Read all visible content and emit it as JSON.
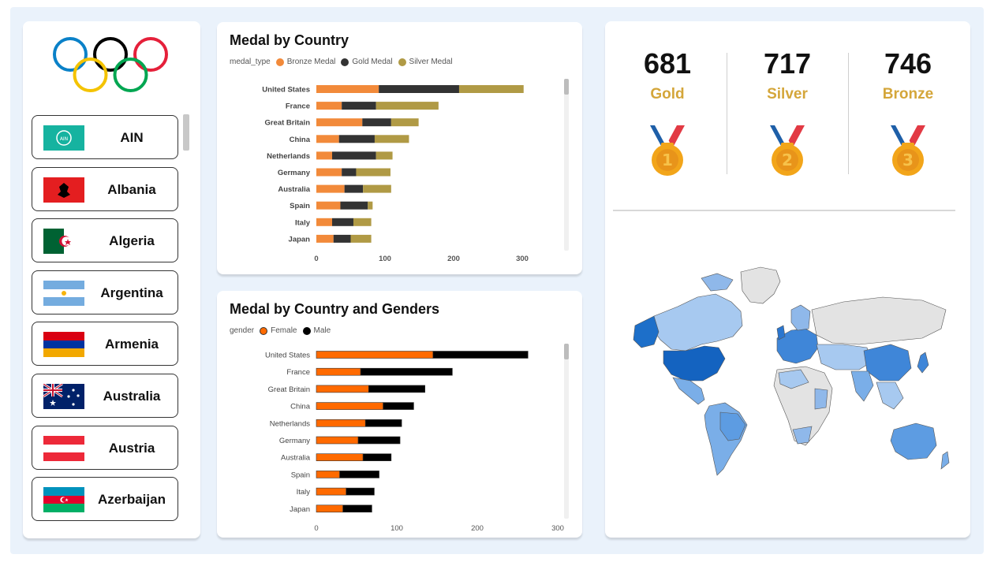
{
  "countries": [
    {
      "name": "AIN",
      "flag": "ain-flag"
    },
    {
      "name": "Albania",
      "flag": "albania-flag"
    },
    {
      "name": "Algeria",
      "flag": "algeria-flag"
    },
    {
      "name": "Argentina",
      "flag": "argentina-flag"
    },
    {
      "name": "Armenia",
      "flag": "armenia-flag"
    },
    {
      "name": "Australia",
      "flag": "australia-flag"
    },
    {
      "name": "Austria",
      "flag": "austria-flag"
    },
    {
      "name": "Azerbaijan",
      "flag": "azerbaijan-flag"
    }
  ],
  "kpis": {
    "gold": {
      "value": "681",
      "label": "Gold"
    },
    "silver": {
      "value": "717",
      "label": "Silver"
    },
    "bronze": {
      "value": "746",
      "label": "Bronze"
    }
  },
  "colors": {
    "bronze": "#f28a3a",
    "gold": "#333333",
    "silver": "#b09a45",
    "female": "#ff6a00",
    "male": "#000000",
    "kpi_label": "#d4a63a"
  },
  "chart_data": [
    {
      "type": "bar",
      "orientation": "horizontal",
      "stacked": true,
      "title": "Medal by Country",
      "legend_title": "medal_type",
      "categories": [
        "United States",
        "France",
        "Great Britain",
        "China",
        "Netherlands",
        "Germany",
        "Australia",
        "Spain",
        "Italy",
        "Japan"
      ],
      "series": [
        {
          "name": "Bronze Medal",
          "values": [
            91,
            37,
            67,
            33,
            23,
            37,
            41,
            35,
            23,
            25
          ]
        },
        {
          "name": "Gold Medal",
          "values": [
            117,
            50,
            42,
            52,
            64,
            21,
            27,
            40,
            31,
            25
          ]
        },
        {
          "name": "Silver Medal",
          "values": [
            94,
            91,
            40,
            50,
            24,
            50,
            41,
            7,
            26,
            30
          ]
        }
      ],
      "xlim": [
        0,
        300
      ],
      "xticks": [
        0,
        100,
        200,
        300
      ],
      "legend_position": "top-left"
    },
    {
      "type": "bar",
      "orientation": "horizontal",
      "stacked": true,
      "title": "Medal by Country and Genders",
      "legend_title": "gender",
      "categories": [
        "United States",
        "France",
        "Great Britain",
        "China",
        "Netherlands",
        "Germany",
        "Australia",
        "Spain",
        "Italy",
        "Japan"
      ],
      "series": [
        {
          "name": "Female",
          "values": [
            145,
            55,
            65,
            83,
            61,
            52,
            58,
            29,
            37,
            33
          ]
        },
        {
          "name": "Male",
          "values": [
            118,
            114,
            70,
            38,
            45,
            52,
            35,
            49,
            35,
            36
          ]
        }
      ],
      "xlim": [
        0,
        300
      ],
      "xticks": [
        0,
        100,
        200,
        300
      ],
      "legend_position": "top-left"
    }
  ]
}
